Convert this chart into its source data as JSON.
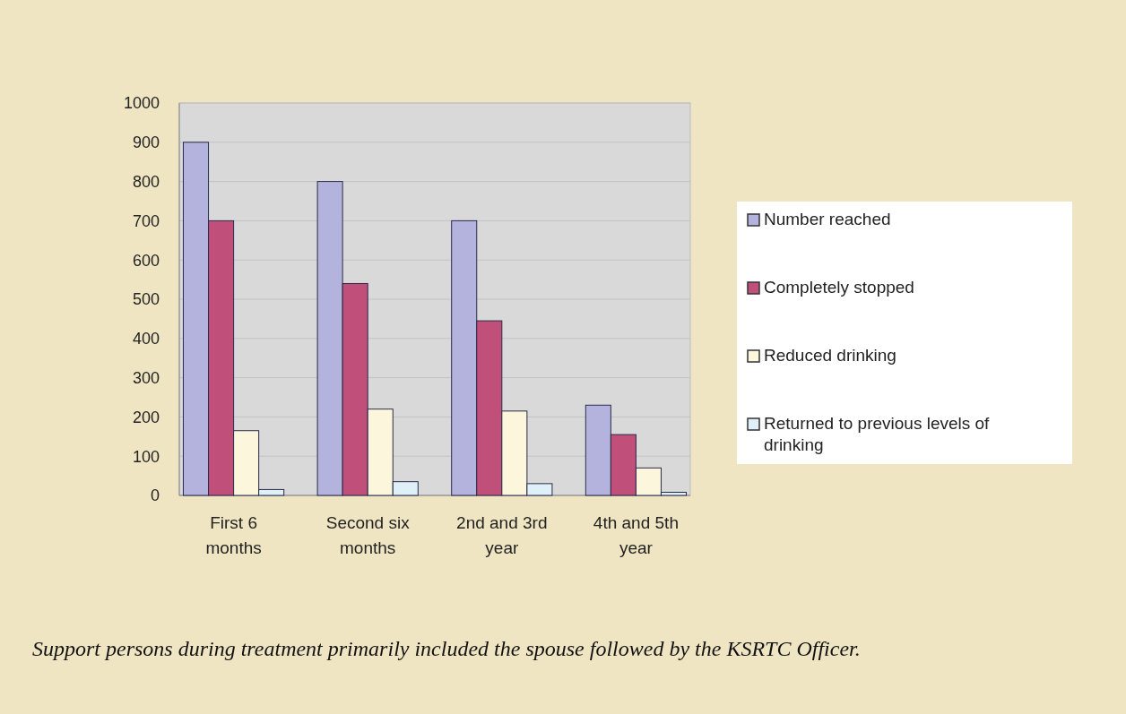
{
  "chart_data": {
    "type": "bar",
    "categories": [
      "First 6 months",
      "Second six months",
      "2nd and 3rd year",
      "4th and 5th year"
    ],
    "series": [
      {
        "name": "Number reached",
        "color": "#b3b3dd",
        "values": [
          900,
          800,
          700,
          230
        ]
      },
      {
        "name": "Completely stopped",
        "color": "#c0507a",
        "values": [
          700,
          540,
          445,
          155
        ]
      },
      {
        "name": "Reduced drinking",
        "color": "#fbf6dc",
        "values": [
          165,
          220,
          215,
          70
        ]
      },
      {
        "name": "Returned to previous levels of drinking",
        "color": "#dff0f8",
        "values": [
          15,
          35,
          30,
          8
        ]
      }
    ],
    "ylim": [
      0,
      1000
    ],
    "yticks": [
      0,
      100,
      200,
      300,
      400,
      500,
      600,
      700,
      800,
      900,
      1000
    ],
    "grid": "y",
    "legend": "right",
    "annotations": [
      "Support persons during treatment primarily included the spouse followed by the KSRTC Officer."
    ]
  }
}
